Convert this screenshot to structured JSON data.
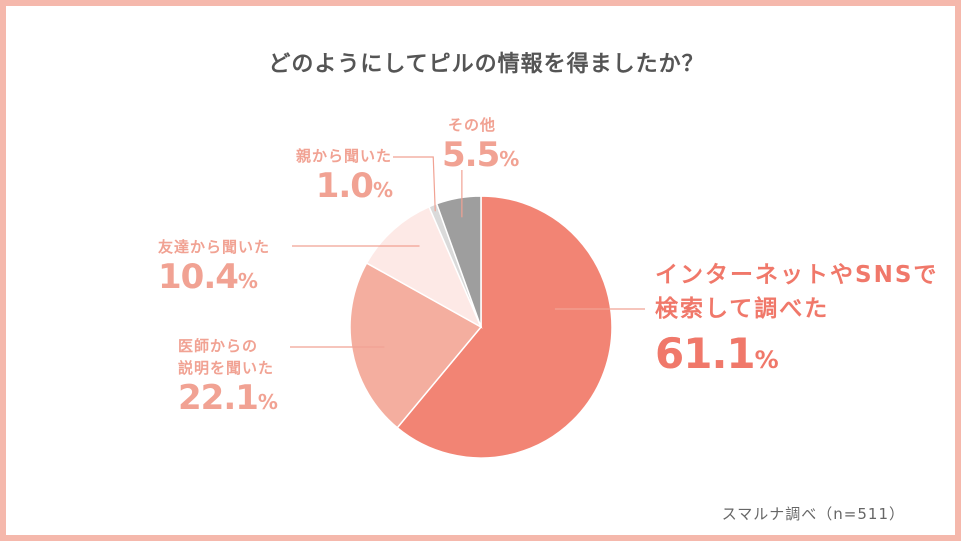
{
  "colors": {
    "border": "#f5b8ac",
    "title": "#555555",
    "label": "#f1a293",
    "highlight": "#f0786a",
    "source": "#666666"
  },
  "chart_data": {
    "type": "pie",
    "title": "どのようにしてピルの情報を得ましたか？",
    "unit": "%",
    "slices": [
      {
        "name": "インターネットやSNSで検索して調べた",
        "name_lines": [
          "インターネットやSNSで",
          "検索して調べた"
        ],
        "value": 61.1,
        "value_text": "61.1",
        "color": "#f28474"
      },
      {
        "name": "医師からの説明を聞いた",
        "name_lines": [
          "医師からの",
          "説明を聞いた"
        ],
        "value": 22.1,
        "value_text": "22.1",
        "color": "#f4ae9f"
      },
      {
        "name": "友達から聞いた",
        "name_lines": [
          "友達から聞いた"
        ],
        "value": 10.4,
        "value_text": "10.4",
        "color": "#fde9e6"
      },
      {
        "name": "親から聞いた",
        "name_lines": [
          "親から聞いた"
        ],
        "value": 1.0,
        "value_text": "1.0",
        "color": "#dadada"
      },
      {
        "name": "その他",
        "name_lines": [
          "その他"
        ],
        "value": 5.5,
        "value_text": "5.5",
        "color": "#9e9e9e"
      }
    ],
    "source": "スマルナ調べ（n=511）"
  }
}
